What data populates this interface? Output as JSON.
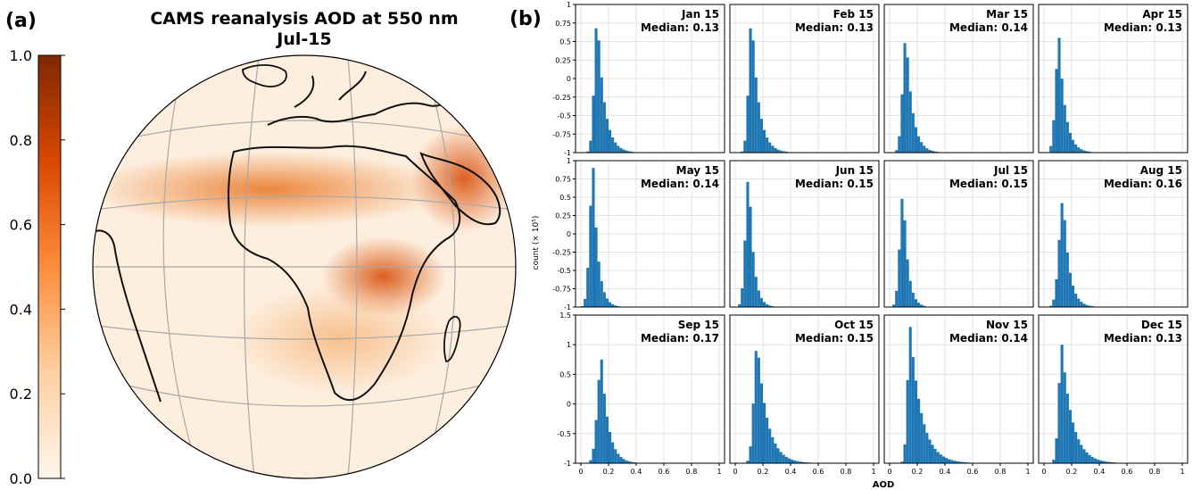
{
  "panel_a": {
    "label": "(a)",
    "title_line1": "CAMS reanalysis AOD at 550 nm",
    "title_line2": "Jul-15",
    "colorbar": {
      "ticks": [
        "1.0",
        "0.8",
        "0.6",
        "0.4",
        "0.2",
        "0.0"
      ],
      "colors": [
        "#fff5eb",
        "#fdd0a2",
        "#fd8d3c",
        "#d94801",
        "#7f2704"
      ]
    }
  },
  "panel_b": {
    "label": "(b)",
    "xlabel": "AOD",
    "ylabel": "count (× 10⁵)",
    "bar_color": "#1f77b4"
  },
  "chart_data": [
    {
      "type": "heatmap",
      "title": "CAMS reanalysis AOD at 550 nm",
      "subtitle": "Jul-15",
      "colorbar_range": [
        0.0,
        1.0
      ],
      "colorbar_ticks": [
        0.0,
        0.2,
        0.4,
        0.6,
        0.8,
        1.0
      ],
      "grid": true
    },
    {
      "type": "bar",
      "subplots": "3x4 histograms",
      "x_ticks": [
        "0",
        "0.2",
        "0.4",
        "0.6",
        "0.8",
        "1"
      ],
      "xlim": [
        0,
        1
      ],
      "ylim_rows": [
        [
          -1,
          1
        ],
        [
          -1,
          1
        ],
        [
          -1,
          1.5
        ]
      ],
      "y_ticks_rows": [
        [
          "1",
          "0.75",
          "0.5",
          "0.25",
          "0",
          "-0.25",
          "-0.5",
          "-0.75",
          "-1"
        ],
        [
          "1",
          "0.75",
          "0.5",
          "0.25",
          "0",
          "-0.25",
          "-0.5",
          "-0.75",
          "-1"
        ],
        [
          "1.5",
          "1",
          "0.5",
          "0",
          "-0.5",
          "-1"
        ]
      ],
      "panels": [
        {
          "month": "Jan 15",
          "median": "Median: 0.13",
          "peak_x": 0.12,
          "peak_y": 0.85,
          "width": 0.045,
          "tail": 0.9
        },
        {
          "month": "Feb 15",
          "median": "Median: 0.13",
          "peak_x": 0.12,
          "peak_y": 0.85,
          "width": 0.045,
          "tail": 0.9
        },
        {
          "month": "Mar 15",
          "median": "Median: 0.14",
          "peak_x": 0.12,
          "peak_y": 0.6,
          "width": 0.05,
          "tail": 1.1
        },
        {
          "month": "Apr 15",
          "median": "Median: 0.13",
          "peak_x": 0.11,
          "peak_y": 0.55,
          "width": 0.05,
          "tail": 1.1
        },
        {
          "month": "May 15",
          "median": "Median: 0.14",
          "peak_x": 0.09,
          "peak_y": 0.9,
          "width": 0.05,
          "tail": 1.4
        },
        {
          "month": "Jun 15",
          "median": "Median: 0.15",
          "peak_x": 0.1,
          "peak_y": 0.85,
          "width": 0.05,
          "tail": 1.5
        },
        {
          "month": "Jul 15",
          "median": "Median: 0.15",
          "peak_x": 0.1,
          "peak_y": 0.6,
          "width": 0.05,
          "tail": 1.5
        },
        {
          "month": "Aug 15",
          "median": "Median: 0.16",
          "peak_x": 0.14,
          "peak_y": 0.5,
          "width": 0.06,
          "tail": 1.4
        },
        {
          "month": "Sep 15",
          "median": "Median: 0.17",
          "peak_x": 0.15,
          "peak_y": 0.75,
          "width": 0.06,
          "tail": 1.2
        },
        {
          "month": "Oct 15",
          "median": "Median: 0.15",
          "peak_x": 0.16,
          "peak_y": 1.05,
          "width": 0.05,
          "tail": 0.7
        },
        {
          "month": "Nov 15",
          "median": "Median: 0.14",
          "peak_x": 0.15,
          "peak_y": 1.3,
          "width": 0.04,
          "tail": 0.5
        },
        {
          "month": "Dec 15",
          "median": "Median: 0.13",
          "peak_x": 0.13,
          "peak_y": 1.0,
          "width": 0.045,
          "tail": 0.6
        }
      ]
    }
  ]
}
